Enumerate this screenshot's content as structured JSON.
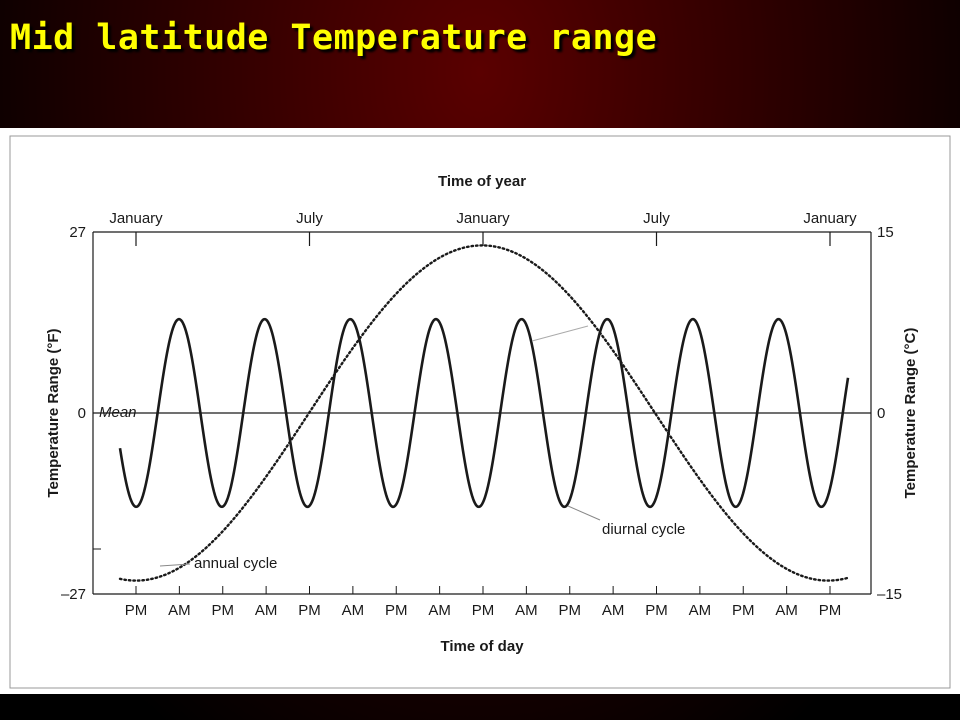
{
  "slide": {
    "title": "Mid latitude Temperature range"
  },
  "chart_data": {
    "type": "line",
    "top_axis": {
      "label": "Time of year",
      "ticks": [
        "January",
        "July",
        "January",
        "July",
        "January"
      ]
    },
    "bottom_axis": {
      "label": "Time of day",
      "ticks": [
        "PM",
        "AM",
        "PM",
        "AM",
        "PM",
        "AM",
        "PM",
        "AM",
        "PM",
        "AM",
        "PM",
        "AM",
        "PM",
        "AM",
        "PM",
        "AM",
        "PM"
      ]
    },
    "left_axis": {
      "label": "Temperature Range (°F)",
      "ticks": [
        "27",
        "0",
        "–27"
      ],
      "values": [
        27,
        0,
        -27
      ],
      "ylim": [
        -27,
        27
      ]
    },
    "right_axis": {
      "label": "Temperature Range (°C)",
      "ticks": [
        "15",
        "0",
        "–15"
      ],
      "values": [
        15,
        0,
        -15
      ],
      "ylim": [
        -15,
        15
      ]
    },
    "mean_label": "Mean",
    "series": [
      {
        "name": "diurnal cycle",
        "style": "solid",
        "amplitude": 14,
        "cycles": 8.5,
        "unit": "°F"
      },
      {
        "name": "annual cycle",
        "style": "dotted",
        "amplitude": 25,
        "cycles": 2,
        "unit": "°F"
      }
    ]
  },
  "colors": {
    "ink": "#1a1a1a",
    "title": "#ffff00",
    "panel": "#ffffff"
  }
}
